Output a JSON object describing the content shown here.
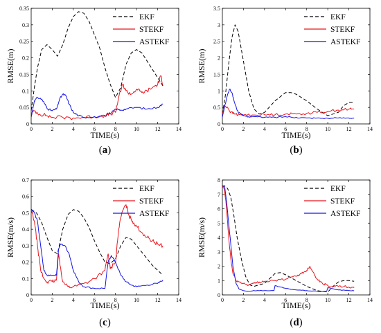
{
  "colors": {
    "EKF": "#000000",
    "STEKF": "#e8141b",
    "ASTEKF": "#1414e6"
  },
  "legend_order": [
    "EKF",
    "STEKF",
    "ASTEKF"
  ],
  "chart_data": [
    {
      "type": "line",
      "caption": "(a)",
      "xlabel": "TIME(s)",
      "ylabel": "RMSE(m)",
      "xlim": [
        0,
        14
      ],
      "ylim": [
        0,
        0.35
      ],
      "xticks": [
        0,
        2,
        4,
        6,
        8,
        10,
        12,
        14
      ],
      "yticks": [
        0,
        0.05,
        0.1,
        0.15,
        0.2,
        0.25,
        0.3,
        0.35
      ],
      "ytick_labels": [
        "0",
        "0.05",
        "0.1",
        "0.15",
        "0.2",
        "0.25",
        "0.3",
        "0.35"
      ],
      "legend_position": "top-right",
      "series": [
        {
          "name": "EKF",
          "style": "dashed",
          "noise": 0,
          "x": [
            0,
            0.3,
            0.6,
            1,
            1.5,
            2,
            2.5,
            3,
            3.5,
            4,
            4.5,
            5,
            5.5,
            6,
            6.5,
            7,
            7.5,
            8,
            8.5,
            9,
            9.5,
            10,
            10.5,
            11,
            11.5,
            12,
            12.5
          ],
          "y": [
            0.04,
            0.11,
            0.17,
            0.225,
            0.24,
            0.225,
            0.205,
            0.24,
            0.29,
            0.325,
            0.34,
            0.335,
            0.31,
            0.27,
            0.23,
            0.17,
            0.12,
            0.08,
            0.11,
            0.18,
            0.215,
            0.225,
            0.215,
            0.19,
            0.165,
            0.14,
            0.115
          ]
        },
        {
          "name": "STEKF",
          "style": "solid",
          "noise": 0.006,
          "x": [
            0,
            0.3,
            0.8,
            1.5,
            2,
            3,
            4,
            5,
            6,
            7,
            7.5,
            8,
            8.3,
            8.7,
            9,
            9.5,
            10,
            10.5,
            11,
            11.5,
            12,
            12.3,
            12.5
          ],
          "y": [
            0.03,
            0.04,
            0.03,
            0.025,
            0.02,
            0.02,
            0.018,
            0.02,
            0.022,
            0.026,
            0.03,
            0.035,
            0.08,
            0.12,
            0.1,
            0.09,
            0.105,
            0.095,
            0.1,
            0.11,
            0.12,
            0.145,
            0.12
          ]
        },
        {
          "name": "ASTEKF",
          "style": "solid",
          "noise": 0.003,
          "x": [
            0,
            0.3,
            0.6,
            1,
            1.3,
            1.6,
            2,
            2.4,
            2.7,
            3,
            3.3,
            3.6,
            4,
            4.5,
            5,
            6,
            7,
            7.5,
            8,
            8.5,
            9,
            10,
            11,
            12,
            12.5
          ],
          "y": [
            0.02,
            0.07,
            0.08,
            0.075,
            0.06,
            0.045,
            0.04,
            0.045,
            0.075,
            0.09,
            0.085,
            0.06,
            0.035,
            0.025,
            0.02,
            0.022,
            0.025,
            0.03,
            0.045,
            0.042,
            0.045,
            0.05,
            0.045,
            0.05,
            0.06
          ]
        }
      ]
    },
    {
      "type": "line",
      "caption": "(b)",
      "xlabel": "TIME(s)",
      "ylabel": "RMSE(m)",
      "xlim": [
        0,
        14
      ],
      "ylim": [
        0,
        3.5
      ],
      "xticks": [
        0,
        2,
        4,
        6,
        8,
        10,
        12,
        14
      ],
      "yticks": [
        0,
        0.5,
        1,
        1.5,
        2,
        2.5,
        3,
        3.5
      ],
      "ytick_labels": [
        "0",
        "0.5",
        "1",
        "1.5",
        "2",
        "2.5",
        "3",
        "3.5"
      ],
      "legend_position": "top-right",
      "series": [
        {
          "name": "EKF",
          "style": "dashed",
          "noise": 0,
          "x": [
            0,
            0.3,
            0.6,
            0.9,
            1.2,
            1.5,
            2,
            2.5,
            3,
            3.5,
            4,
            5,
            6,
            6.5,
            7,
            8,
            9,
            10,
            11,
            11.5,
            12,
            12.5
          ],
          "y": [
            0.3,
            0.9,
            1.8,
            2.6,
            3.0,
            2.8,
            1.9,
            1.0,
            0.45,
            0.3,
            0.35,
            0.7,
            0.95,
            0.95,
            0.9,
            0.7,
            0.45,
            0.25,
            0.35,
            0.55,
            0.65,
            0.65
          ]
        },
        {
          "name": "STEKF",
          "style": "solid",
          "noise": 0.04,
          "x": [
            0,
            0.2,
            0.5,
            0.8,
            1.2,
            1.6,
            2,
            3,
            4,
            5,
            6,
            7,
            8,
            9,
            10,
            11,
            12,
            12.5
          ],
          "y": [
            0.3,
            0.55,
            0.5,
            0.35,
            0.3,
            0.28,
            0.27,
            0.27,
            0.28,
            0.28,
            0.3,
            0.3,
            0.32,
            0.35,
            0.38,
            0.42,
            0.45,
            0.45
          ]
        },
        {
          "name": "ASTEKF",
          "style": "solid",
          "noise": 0.02,
          "x": [
            0,
            0.2,
            0.5,
            0.7,
            0.9,
            1.2,
            1.5,
            2,
            2.5,
            3,
            4,
            5,
            6,
            7,
            8,
            9,
            10,
            11,
            12,
            12.5
          ],
          "y": [
            0.2,
            0.5,
            0.9,
            1.05,
            0.95,
            0.6,
            0.35,
            0.25,
            0.22,
            0.22,
            0.2,
            0.2,
            0.22,
            0.2,
            0.18,
            0.18,
            0.17,
            0.18,
            0.18,
            0.18
          ]
        }
      ]
    },
    {
      "type": "line",
      "caption": "(c)",
      "xlabel": "TIME(s)",
      "ylabel": "RMSE(m/s)",
      "xlim": [
        0,
        14
      ],
      "ylim": [
        0,
        0.7
      ],
      "xticks": [
        0,
        2,
        4,
        6,
        8,
        10,
        12,
        14
      ],
      "yticks": [
        0,
        0.1,
        0.2,
        0.3,
        0.4,
        0.5,
        0.6,
        0.7
      ],
      "ytick_labels": [
        "0",
        "0.1",
        "0.2",
        "0.3",
        "0.4",
        "0.5",
        "0.6",
        "0.7"
      ],
      "legend_position": "top-right",
      "series": [
        {
          "name": "EKF",
          "style": "dashed",
          "noise": 0,
          "x": [
            0,
            0.5,
            1,
            1.5,
            2,
            2.5,
            3,
            3.5,
            4,
            4.5,
            5,
            5.5,
            6,
            6.5,
            7,
            7.5,
            8,
            8.5,
            9,
            9.5,
            10,
            10.5,
            11,
            11.5,
            12,
            12.5
          ],
          "y": [
            0.52,
            0.5,
            0.44,
            0.35,
            0.27,
            0.25,
            0.4,
            0.49,
            0.52,
            0.51,
            0.47,
            0.41,
            0.33,
            0.26,
            0.2,
            0.19,
            0.22,
            0.3,
            0.35,
            0.34,
            0.3,
            0.26,
            0.22,
            0.18,
            0.15,
            0.12
          ]
        },
        {
          "name": "STEKF",
          "style": "solid",
          "noise": 0.012,
          "x": [
            0,
            0.3,
            0.6,
            0.9,
            1.2,
            1.5,
            2,
            2.4,
            2.6,
            3,
            3.5,
            4,
            5,
            6,
            7,
            7.3,
            7.5,
            8,
            8.3,
            8.6,
            9,
            9.3,
            9.6,
            10,
            10.5,
            11,
            11.5,
            12,
            12.5
          ],
          "y": [
            0.52,
            0.45,
            0.3,
            0.15,
            0.1,
            0.08,
            0.08,
            0.09,
            0.25,
            0.08,
            0.05,
            0.05,
            0.07,
            0.1,
            0.15,
            0.25,
            0.16,
            0.2,
            0.4,
            0.5,
            0.55,
            0.48,
            0.45,
            0.42,
            0.38,
            0.35,
            0.33,
            0.31,
            0.3
          ]
        },
        {
          "name": "ASTEKF",
          "style": "solid",
          "noise": 0.005,
          "x": [
            0,
            0.3,
            0.6,
            0.9,
            1.2,
            1.5,
            2,
            2.4,
            2.6,
            2.8,
            3.2,
            3.6,
            4,
            4.5,
            5,
            6,
            7,
            7.3,
            7.6,
            8,
            8.5,
            9,
            9.5,
            10,
            11,
            12,
            12.5
          ],
          "y": [
            0.52,
            0.5,
            0.45,
            0.3,
            0.15,
            0.12,
            0.12,
            0.12,
            0.28,
            0.31,
            0.3,
            0.25,
            0.15,
            0.08,
            0.05,
            0.04,
            0.04,
            0.2,
            0.24,
            0.2,
            0.12,
            0.08,
            0.06,
            0.05,
            0.06,
            0.07,
            0.09
          ]
        }
      ]
    },
    {
      "type": "line",
      "caption": "(d)",
      "xlabel": "TIME(s)",
      "ylabel": "RMSE(m/s)",
      "xlim": [
        0,
        14
      ],
      "ylim": [
        0,
        8
      ],
      "xticks": [
        0,
        2,
        4,
        6,
        8,
        10,
        12,
        14
      ],
      "yticks": [
        0,
        1,
        2,
        3,
        4,
        5,
        6,
        7,
        8
      ],
      "ytick_labels": [
        "0",
        "1",
        "2",
        "3",
        "4",
        "5",
        "6",
        "7",
        "8"
      ],
      "legend_position": "top-right",
      "series": [
        {
          "name": "EKF",
          "style": "dashed",
          "noise": 0,
          "x": [
            0,
            0.2,
            0.5,
            0.8,
            1.1,
            1.4,
            1.8,
            2.2,
            2.6,
            3,
            3.5,
            4,
            5,
            5.5,
            6,
            7,
            8,
            9,
            10,
            10.5,
            11,
            11.5,
            12,
            12.5
          ],
          "y": [
            7.5,
            7.6,
            7.4,
            6.8,
            5.5,
            4.0,
            2.5,
            1.3,
            0.7,
            0.6,
            0.7,
            0.8,
            1.5,
            1.55,
            1.4,
            1.0,
            0.6,
            0.3,
            0.2,
            0.6,
            0.9,
            1.0,
            1.0,
            0.95
          ]
        },
        {
          "name": "STEKF",
          "style": "solid",
          "noise": 0.08,
          "x": [
            0,
            0.2,
            0.4,
            0.6,
            0.8,
            1,
            1.3,
            1.6,
            2,
            2.5,
            3,
            3.5,
            4,
            5,
            6,
            7,
            7.5,
            8,
            8.3,
            8.6,
            9,
            9.5,
            10,
            11,
            12,
            12.5
          ],
          "y": [
            7.6,
            7.3,
            6.0,
            4.0,
            2.5,
            1.5,
            1.0,
            0.9,
            0.8,
            0.7,
            0.8,
            0.9,
            0.95,
            1.0,
            1.1,
            1.3,
            1.5,
            1.7,
            2.0,
            1.6,
            1.1,
            0.8,
            0.65,
            0.6,
            0.55,
            0.5
          ]
        },
        {
          "name": "ASTEKF",
          "style": "solid",
          "noise": 0.02,
          "x": [
            0,
            0.2,
            0.4,
            0.6,
            0.8,
            1,
            1.3,
            1.6,
            2,
            2.5,
            3,
            4,
            4.9,
            5,
            5.5,
            6,
            7,
            8,
            9,
            9.9,
            10,
            11,
            12,
            12.5
          ],
          "y": [
            7.6,
            7.6,
            6.5,
            5.0,
            3.5,
            2.0,
            0.8,
            0.4,
            0.3,
            0.25,
            0.3,
            0.3,
            0.3,
            0.65,
            0.55,
            0.45,
            0.35,
            0.3,
            0.25,
            0.25,
            0.5,
            0.35,
            0.3,
            0.3
          ]
        }
      ]
    }
  ]
}
